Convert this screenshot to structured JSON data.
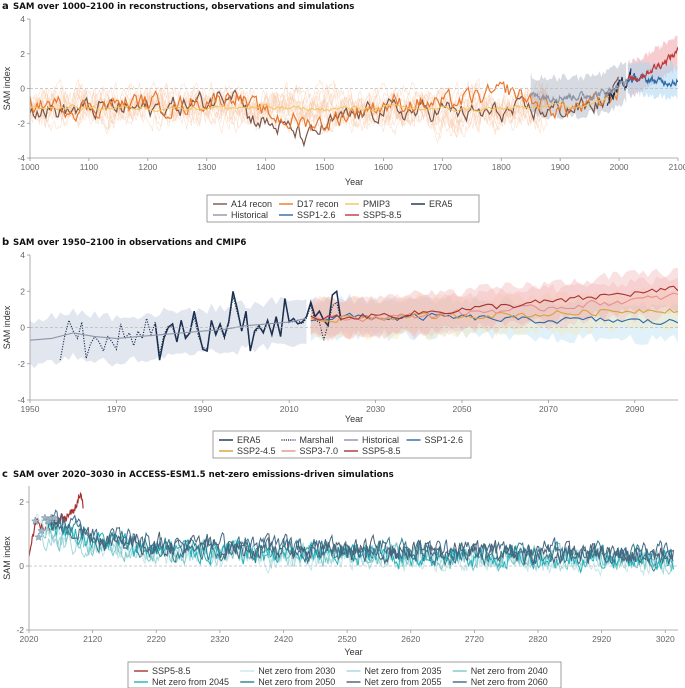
{
  "figure": {
    "panels": [
      {
        "label": "a",
        "title": "SAM over 1000–2100 in reconstructions, observations and simulations"
      },
      {
        "label": "b",
        "title": "SAM over 1950–2100 in observations and CMIP6"
      },
      {
        "label": "c",
        "title": "SAM over 2020–3030 in ACCESS-ESM1.5 net-zero emissions-driven simulations"
      }
    ]
  },
  "chart_data": [
    {
      "type": "line",
      "title": "SAM over 1000–2100 in reconstructions, observations and simulations",
      "xlabel": "Year",
      "ylabel": "SAM index",
      "xlim": [
        1000,
        2100
      ],
      "ylim": [
        -4,
        4
      ],
      "xticks": [
        "1000",
        "1100",
        "1200",
        "1300",
        "1400",
        "1500",
        "1600",
        "1700",
        "1800",
        "1900",
        "2000",
        "2100"
      ],
      "yticks": [
        "4",
        "2",
        "0",
        "-2",
        "-4"
      ],
      "reference_line": 0,
      "legend_position": "bottom-center",
      "legend": [
        "A14 recon",
        "D17 recon",
        "PMIP3",
        "ERA5",
        "Historical",
        "SSP1-2.6",
        "SSP5-8.5"
      ],
      "series": [
        {
          "name": "A14 recon",
          "color": "#7a5448",
          "x": [
            1000,
            1050,
            1100,
            1150,
            1200,
            1250,
            1300,
            1330,
            1350,
            1370,
            1400,
            1450,
            1470,
            1500,
            1550,
            1600,
            1650,
            1700,
            1750,
            1800,
            1850,
            1900,
            1950,
            1980,
            2000
          ],
          "y": [
            -1.0,
            -1.3,
            -1.2,
            -1.1,
            -1.2,
            -1.0,
            -0.8,
            -0.3,
            0.4,
            -1.5,
            -2.0,
            -2.5,
            -3.0,
            -2.2,
            -1.6,
            -1.2,
            -1.4,
            -1.2,
            -1.5,
            -1.4,
            -1.3,
            -1.2,
            -1.0,
            -0.6,
            0.2
          ]
        },
        {
          "name": "D17 recon",
          "color": "#e8772e",
          "x": [
            1000,
            1050,
            1100,
            1150,
            1200,
            1250,
            1300,
            1330,
            1350,
            1370,
            1400,
            1450,
            1500,
            1550,
            1600,
            1650,
            1700,
            1750,
            1800,
            1810,
            1850,
            1900,
            1950,
            1980,
            2000
          ],
          "y": [
            -0.9,
            -1.0,
            -1.1,
            -0.9,
            -0.8,
            -1.0,
            -0.7,
            -0.5,
            -0.2,
            -1.0,
            -1.5,
            -1.9,
            -2.0,
            -1.3,
            -0.9,
            -0.8,
            -0.9,
            -0.6,
            -0.3,
            -0.1,
            -0.7,
            -1.2,
            -1.0,
            -0.7,
            0.0
          ]
        },
        {
          "name": "PMIP3",
          "color": "#f2c55c",
          "x": [
            1000,
            1100,
            1200,
            1300,
            1400,
            1500,
            1600,
            1700,
            1800,
            1850,
            1900,
            1950,
            2000
          ],
          "y": [
            -1.1,
            -1.1,
            -1.1,
            -1.1,
            -1.1,
            -1.2,
            -1.1,
            -1.2,
            -1.2,
            -1.1,
            -1.0,
            -0.9,
            -0.4
          ]
        },
        {
          "name": "ERA5",
          "color": "#1b2f4f",
          "x": [
            1980,
            1990,
            2000,
            2010,
            2020
          ],
          "y": [
            -0.8,
            -0.2,
            0.3,
            0.4,
            1.1
          ]
        },
        {
          "name": "Historical",
          "color": "#8d95a8",
          "x": [
            1850,
            1900,
            1950,
            1980,
            2000,
            2014
          ],
          "y": [
            -0.4,
            -0.5,
            -0.4,
            -0.2,
            0.2,
            0.4
          ]
        },
        {
          "name": "SSP1-2.6",
          "color": "#2a6aa8",
          "x": [
            2015,
            2030,
            2050,
            2070,
            2090,
            2100
          ],
          "y": [
            0.5,
            0.6,
            0.5,
            0.4,
            0.4,
            0.4
          ]
        },
        {
          "name": "SSP5-8.5",
          "color": "#c0393b",
          "x": [
            2015,
            2030,
            2050,
            2070,
            2090,
            2100
          ],
          "y": [
            0.5,
            0.6,
            1.0,
            1.4,
            1.9,
            2.1
          ]
        }
      ]
    },
    {
      "type": "line",
      "title": "SAM over 1950–2100 in observations and CMIP6",
      "xlabel": "Year",
      "ylabel": "SAM index",
      "xlim": [
        1950,
        2100
      ],
      "ylim": [
        -4,
        4
      ],
      "xticks": [
        "1950",
        "1970",
        "1990",
        "2010",
        "2030",
        "2050",
        "2070",
        "2090"
      ],
      "yticks": [
        "4",
        "2",
        "0",
        "-2",
        "-4"
      ],
      "reference_line": 0,
      "legend_position": "bottom-center",
      "legend": [
        "ERA5",
        "Marshall",
        "Historical",
        "SSP1-2.6",
        "SSP2-4.5",
        "SSP3-7.0",
        "SSP5-8.5"
      ],
      "series": [
        {
          "name": "ERA5",
          "color": "#1b2f4f",
          "style": "solid",
          "x": [
            1979,
            1980,
            1981,
            1982,
            1983,
            1984,
            1985,
            1986,
            1987,
            1988,
            1989,
            1990,
            1991,
            1992,
            1993,
            1994,
            1995,
            1996,
            1997,
            1998,
            1999,
            2000,
            2001,
            2002,
            2003,
            2004,
            2005,
            2006,
            2007,
            2008,
            2009,
            2010,
            2011,
            2012,
            2013,
            2014,
            2015,
            2016,
            2017,
            2018,
            2019,
            2020,
            2021,
            2022
          ],
          "y": [
            0.2,
            -1.8,
            -0.6,
            0.0,
            0.2,
            -0.8,
            0.4,
            -0.6,
            -0.3,
            0.9,
            -0.2,
            -1.2,
            -1.3,
            0.4,
            -0.4,
            0.2,
            -0.5,
            0.3,
            2.0,
            1.0,
            -0.2,
            0.9,
            -1.3,
            -0.2,
            0.1,
            -0.3,
            0.4,
            -0.4,
            0.6,
            -0.5,
            1.6,
            0.3,
            0.5,
            0.2,
            0.3,
            0.6,
            1.4,
            0.6,
            0.9,
            0.4,
            0.1,
            1.8,
            2.0,
            0.4
          ]
        },
        {
          "name": "Marshall",
          "color": "#1b2f4f",
          "style": "dotted",
          "x": [
            1957,
            1958,
            1959,
            1960,
            1961,
            1962,
            1963,
            1964,
            1965,
            1966,
            1967,
            1968,
            1969,
            1970,
            1971,
            1972,
            1973,
            1974,
            1975,
            1976,
            1977,
            1978,
            1979,
            1980,
            1981,
            1982,
            1983,
            1984,
            1985,
            1986,
            1987,
            1988,
            1989,
            1990,
            1991,
            1992,
            1993,
            1994,
            1995,
            1996,
            1997,
            1998,
            1999,
            2000,
            2001,
            2002,
            2003,
            2004,
            2005,
            2006,
            2007,
            2008,
            2009,
            2010,
            2011,
            2012,
            2013,
            2014,
            2015,
            2016,
            2017,
            2018,
            2019,
            2020,
            2021,
            2022
          ],
          "y": [
            -1.8,
            -0.5,
            0.4,
            -0.2,
            -0.6,
            0.3,
            -1.7,
            -0.9,
            -0.5,
            -0.8,
            -1.3,
            -0.5,
            -0.8,
            -1.2,
            0.2,
            -0.6,
            -0.3,
            -1.0,
            -0.2,
            -0.6,
            0.5,
            -0.4,
            0.3,
            -1.5,
            -0.4,
            0.1,
            0.0,
            -0.7,
            0.3,
            -0.5,
            -0.3,
            0.6,
            -0.5,
            -1.1,
            -1.2,
            0.3,
            -0.3,
            0.1,
            -0.6,
            0.2,
            1.7,
            0.8,
            -0.1,
            0.7,
            -1.2,
            -0.3,
            0.0,
            -0.2,
            0.3,
            -0.3,
            0.4,
            -0.5,
            1.5,
            0.4,
            0.3,
            0.4,
            0.2,
            0.5,
            1.2,
            0.4,
            0.3,
            -0.7,
            0.2,
            1.2,
            1.4,
            0.4
          ]
        },
        {
          "name": "Historical",
          "color": "#8d95a8",
          "style": "solid",
          "x": [
            1950,
            1955,
            1960,
            1965,
            1970,
            1975,
            1980,
            1985,
            1990,
            1995,
            2000,
            2005,
            2010,
            2014
          ],
          "y": [
            -0.7,
            -0.6,
            -0.3,
            -0.5,
            -0.6,
            -0.5,
            -0.4,
            -0.3,
            -0.2,
            -0.1,
            0.1,
            0.2,
            0.3,
            0.5
          ]
        },
        {
          "name": "SSP1-2.6",
          "color": "#2a6aa8",
          "style": "solid",
          "x": [
            2015,
            2025,
            2035,
            2045,
            2055,
            2065,
            2075,
            2085,
            2095,
            2100
          ],
          "y": [
            0.5,
            0.6,
            0.5,
            0.6,
            0.5,
            0.4,
            0.4,
            0.4,
            0.3,
            0.3
          ]
        },
        {
          "name": "SSP2-4.5",
          "color": "#d9a13a",
          "style": "solid",
          "x": [
            2015,
            2025,
            2035,
            2045,
            2055,
            2065,
            2075,
            2085,
            2095,
            2100
          ],
          "y": [
            0.5,
            0.5,
            0.6,
            0.6,
            0.7,
            0.7,
            0.8,
            0.9,
            1.0,
            1.0
          ]
        },
        {
          "name": "SSP3-7.0",
          "color": "#e88e8e",
          "style": "solid",
          "x": [
            2015,
            2025,
            2035,
            2045,
            2055,
            2065,
            2075,
            2085,
            2095,
            2100
          ],
          "y": [
            0.5,
            0.5,
            0.6,
            0.7,
            0.9,
            1.0,
            1.2,
            1.4,
            1.6,
            1.8
          ]
        },
        {
          "name": "SSP5-8.5",
          "color": "#a83232",
          "style": "solid",
          "x": [
            2015,
            2025,
            2035,
            2045,
            2055,
            2065,
            2075,
            2085,
            2095,
            2100
          ],
          "y": [
            0.5,
            0.6,
            0.7,
            0.9,
            1.1,
            1.3,
            1.5,
            1.8,
            2.0,
            2.1
          ]
        }
      ]
    },
    {
      "type": "line",
      "title": "SAM over 2020–3030 in ACCESS-ESM1.5 net-zero emissions-driven simulations",
      "xlabel": "Year",
      "ylabel": "SAM index",
      "xlim": [
        2020,
        3040
      ],
      "ylim": [
        -2,
        2.5
      ],
      "xticks": [
        "2020",
        "2120",
        "2220",
        "2320",
        "2420",
        "2520",
        "2620",
        "2720",
        "2820",
        "2920",
        "3020"
      ],
      "yticks": [
        "2",
        "0",
        "-2"
      ],
      "reference_line": 0,
      "legend_position": "bottom-center",
      "legend": [
        "SSP5-8.5",
        "Net zero from 2030",
        "Net zero from 2035",
        "Net zero from 2040",
        "Net zero from 2045",
        "Net zero from 2050",
        "Net zero from 2055",
        "Net zero from 2060"
      ],
      "series": [
        {
          "name": "SSP5-8.5",
          "color": "#a83232",
          "x": [
            2020,
            2030,
            2045,
            2060,
            2075,
            2090,
            2100,
            2105
          ],
          "y": [
            0.3,
            1.4,
            1.1,
            1.3,
            1.5,
            1.7,
            2.3,
            1.8
          ]
        },
        {
          "name": "Net zero from 2030",
          "color": "#c8e6e8",
          "start": 2030,
          "start_value": 1.4,
          "mean": 0.4
        },
        {
          "name": "Net zero from 2035",
          "color": "#a5d8dc",
          "start": 2035,
          "start_value": 0.9,
          "mean": 0.45
        },
        {
          "name": "Net zero from 2040",
          "color": "#7cc7c9",
          "start": 2040,
          "start_value": 1.1,
          "mean": 0.5
        },
        {
          "name": "Net zero from 2045",
          "color": "#1eb3bc",
          "start": 2045,
          "start_value": 1.5,
          "mean": 0.5
        },
        {
          "name": "Net zero from 2050",
          "color": "#2e7f8e",
          "start": 2050,
          "start_value": 1.4,
          "mean": 0.6
        },
        {
          "name": "Net zero from 2055",
          "color": "#4c5e74",
          "start": 2055,
          "start_value": 1.5,
          "mean": 0.65
        },
        {
          "name": "Net zero from 2060",
          "color": "#3f6a86",
          "start": 2060,
          "start_value": 1.5,
          "mean": 0.7
        }
      ]
    }
  ]
}
